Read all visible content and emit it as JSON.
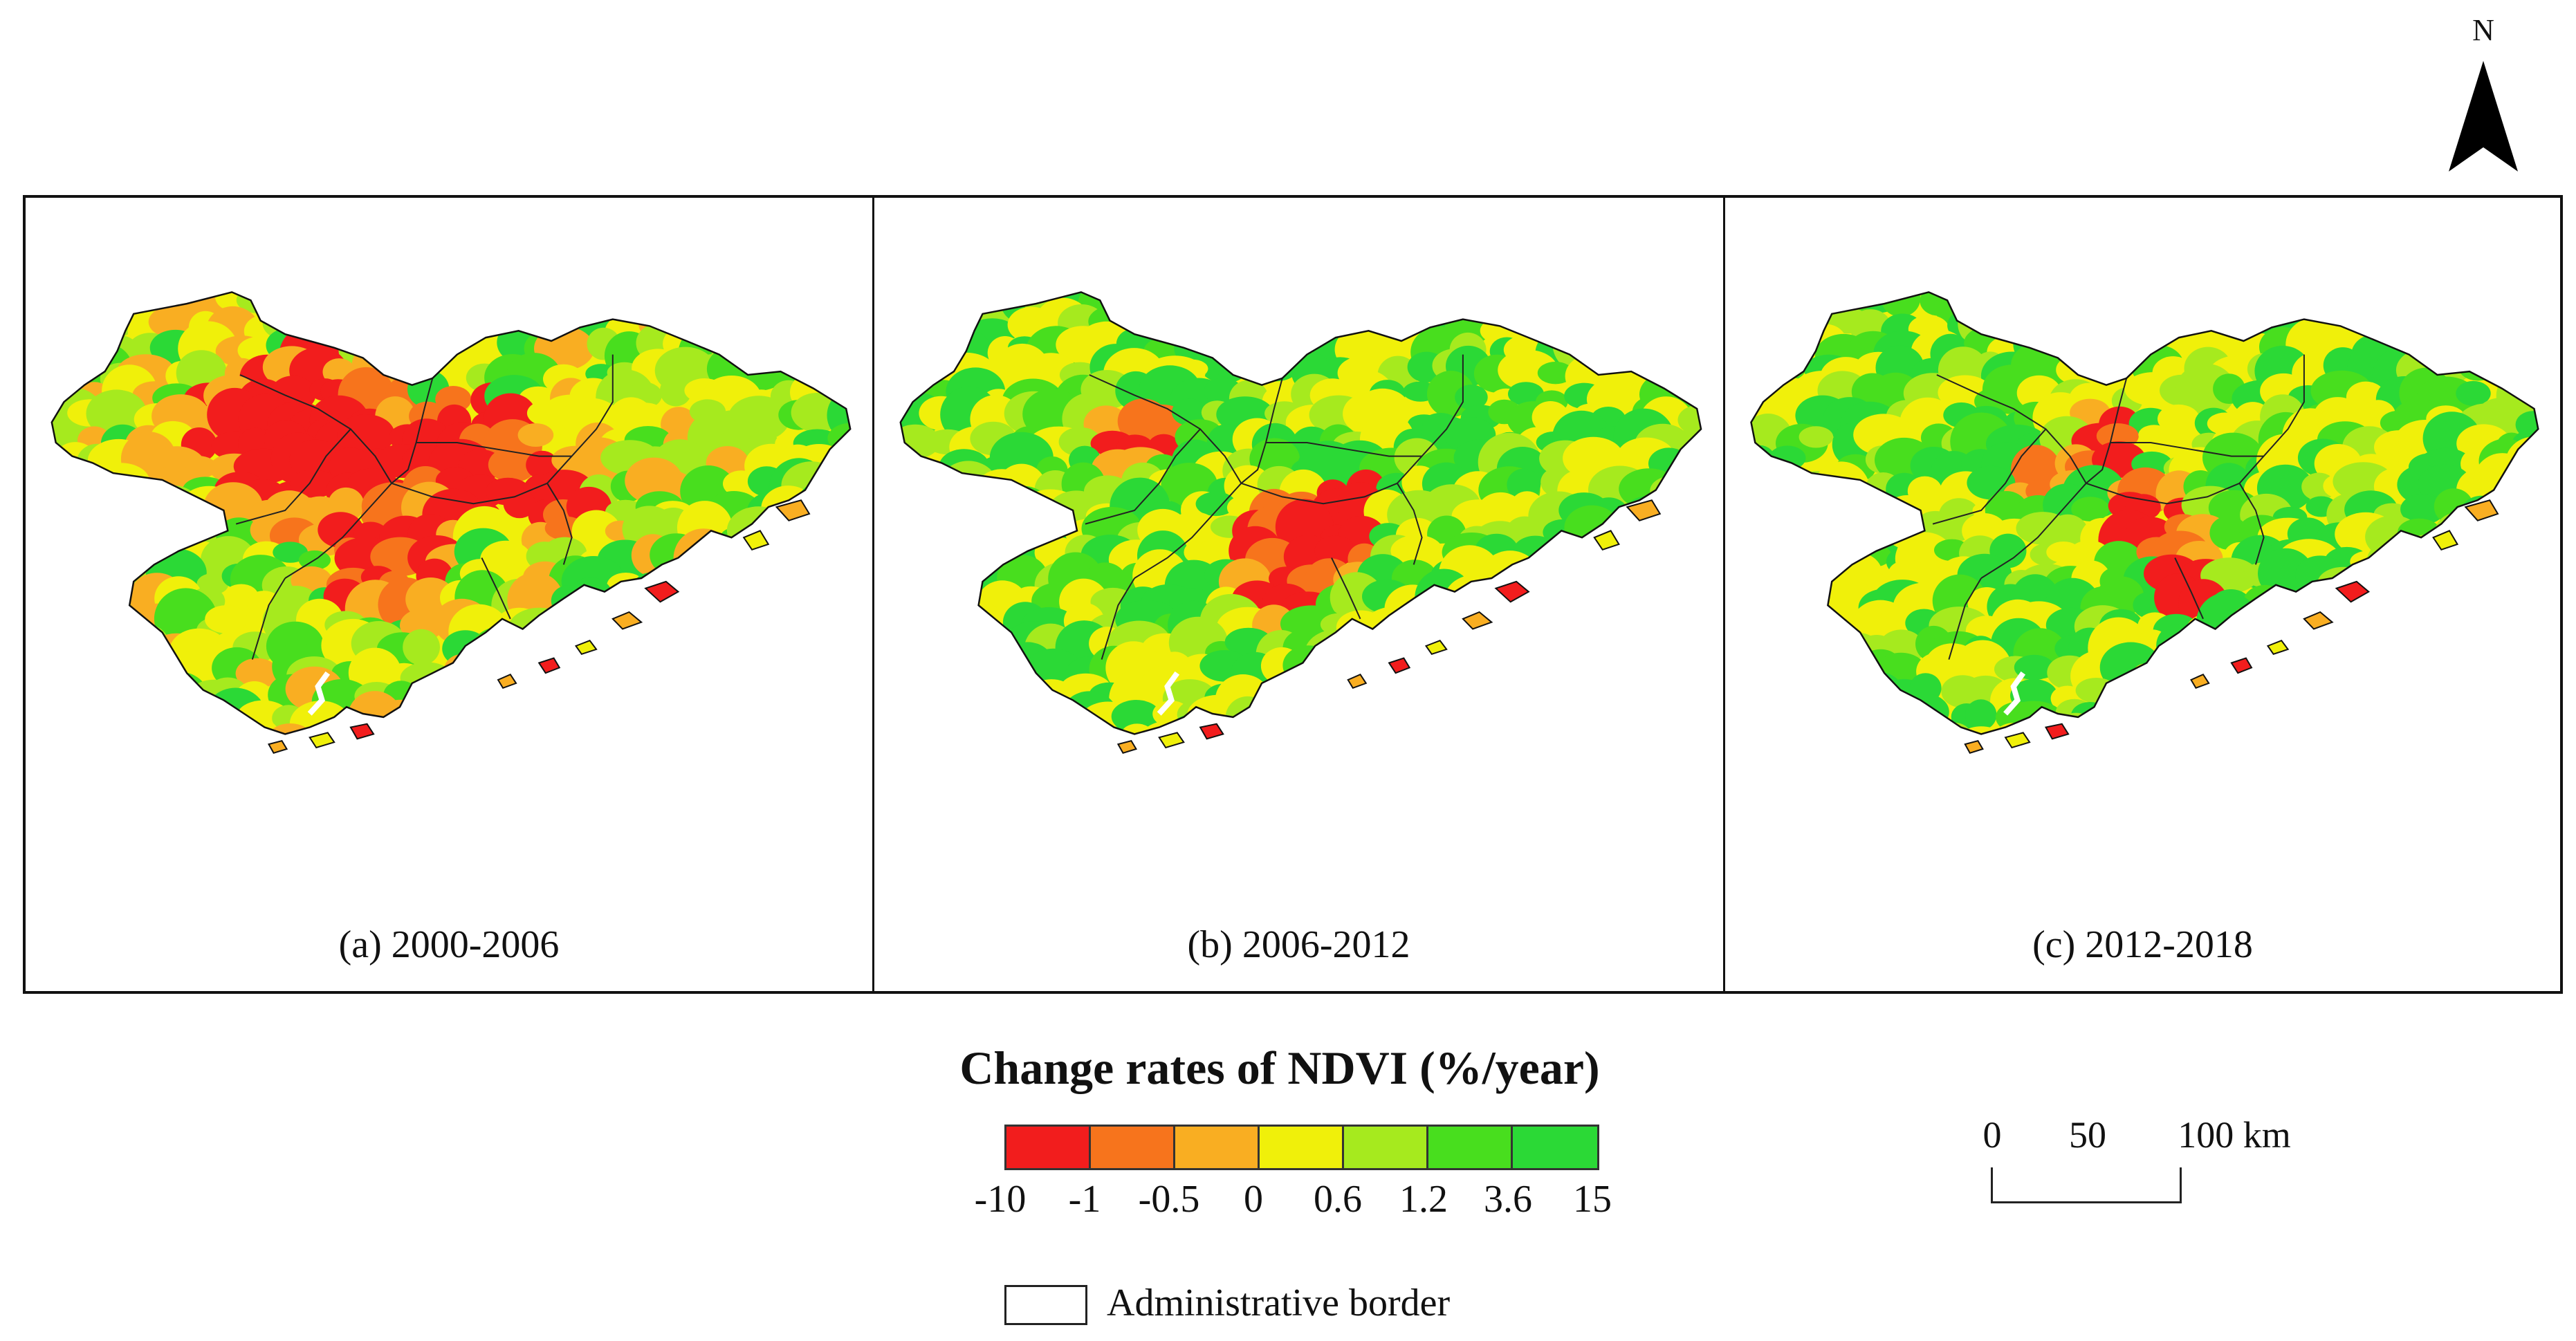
{
  "north_arrow": {
    "letter": "N"
  },
  "panels": [
    {
      "label": "(a) 2000-2006",
      "period": "2000-2006"
    },
    {
      "label": "(b) 2006-2012",
      "period": "2006-2012"
    },
    {
      "label": "(c) 2012-2018",
      "period": "2012-2018"
    }
  ],
  "legend": {
    "title": "Change rates of NDVI (%/year)",
    "classes": [
      {
        "from": "-10",
        "to": "-1",
        "color": "#f21d1d"
      },
      {
        "from": "-1",
        "to": "-0.5",
        "color": "#f7741c"
      },
      {
        "from": "-0.5",
        "to": "0",
        "color": "#f9ae22"
      },
      {
        "from": "0",
        "to": "0.6",
        "color": "#f0f00a"
      },
      {
        "from": "0.6",
        "to": "1.2",
        "color": "#a6ea1e"
      },
      {
        "from": "1.2",
        "to": "3.6",
        "color": "#48de1e"
      },
      {
        "from": "3.6",
        "to": "15",
        "color": "#2bd936"
      }
    ],
    "tick_labels": [
      "-10",
      "-1",
      "-0.5",
      "0",
      "0.6",
      "1.2",
      "3.6",
      "15"
    ],
    "admin_border_label": "Administrative border"
  },
  "scale_bar": {
    "labels": [
      "0",
      "50",
      "100 km"
    ]
  }
}
